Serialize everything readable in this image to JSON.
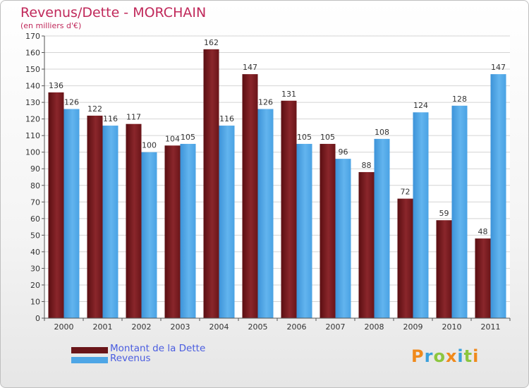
{
  "chart_data": {
    "type": "bar",
    "title": "Revenus/Dette - MORCHAIN",
    "subtitle": "(en milliers d'€)",
    "xlabel": "",
    "ylabel": "",
    "ylim": [
      0,
      170
    ],
    "ytick_step": 10,
    "grid": true,
    "legend_position": "bottom-left",
    "categories": [
      "2000",
      "2001",
      "2002",
      "2003",
      "2004",
      "2005",
      "2006",
      "2007",
      "2008",
      "2009",
      "2010",
      "2011"
    ],
    "series": [
      {
        "name": "Montant de la Dette",
        "color": "#7a1a1f",
        "values": [
          136,
          122,
          117,
          104,
          162,
          147,
          131,
          105,
          88,
          72,
          59,
          48
        ]
      },
      {
        "name": "Revenus",
        "color": "#4ea6e6",
        "values": [
          126,
          116,
          100,
          105,
          116,
          126,
          105,
          96,
          108,
          124,
          128,
          147
        ]
      }
    ]
  },
  "logo": {
    "text": "Proxiti",
    "colors": [
      "#f08a1c",
      "#3aa0dc",
      "#8cc63f",
      "#f08a1c",
      "#3aa0dc",
      "#8cc63f",
      "#f08a1c"
    ]
  }
}
